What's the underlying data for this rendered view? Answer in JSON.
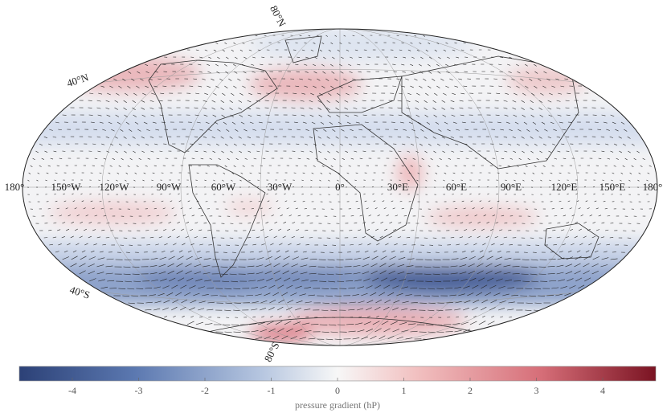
{
  "map": {
    "projection": "Hammer-Aitoff (global)",
    "field": "pressure gradient anomaly with vector arrows",
    "lon_labels": [
      "180°",
      "150°W",
      "120°W",
      "90°W",
      "60°W",
      "30°W",
      "0°",
      "30°E",
      "60°E",
      "90°E",
      "120°E",
      "150°E",
      "180°"
    ],
    "lat_labels": [
      "80°N",
      "40°N",
      "40°S",
      "80°S"
    ],
    "lon_values": [
      -180,
      -150,
      -120,
      -90,
      -60,
      -30,
      0,
      30,
      60,
      90,
      120,
      150,
      180
    ],
    "lat_values": [
      80,
      40,
      -40,
      -80
    ]
  },
  "colorbar": {
    "title": "pressure gradient (hP)",
    "ticks": [
      "-4",
      "-3",
      "-2",
      "-1",
      "0",
      "1",
      "2",
      "3",
      "4"
    ],
    "tick_values": [
      -4,
      -3,
      -2,
      -1,
      0,
      1,
      2,
      3,
      4
    ],
    "range": [
      -4.8,
      4.8
    ],
    "colors": [
      "#2c4177",
      "#5b78b0",
      "#b6c6e0",
      "#f7f7f7",
      "#f2c2c2",
      "#d66e78",
      "#7a1322"
    ]
  }
}
